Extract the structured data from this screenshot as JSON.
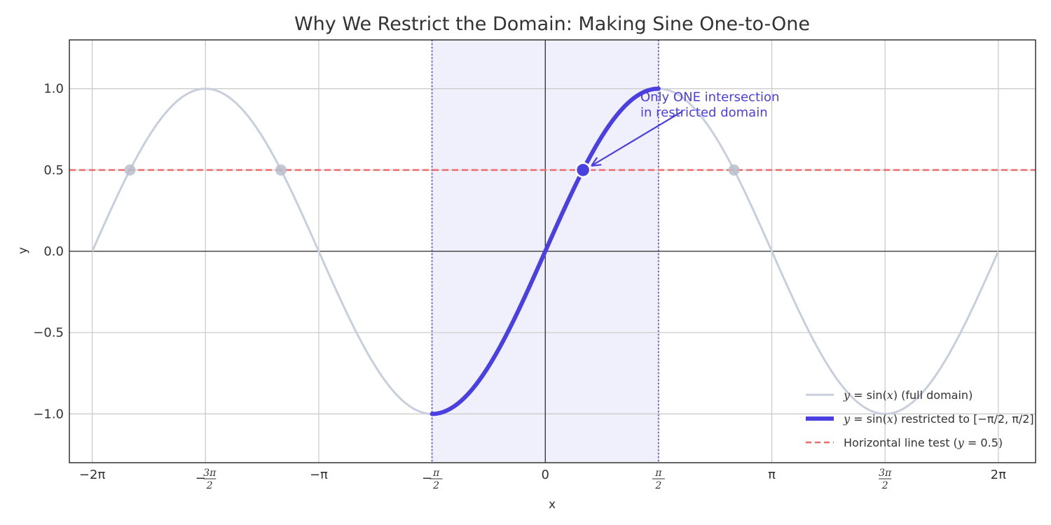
{
  "chart_data": {
    "type": "line",
    "title": "Why We Restrict the Domain: Making Sine One-to-One",
    "xlabel": "x",
    "ylabel": "y",
    "xlim": [
      -6.6,
      6.8
    ],
    "ylim": [
      -1.3,
      1.3
    ],
    "grid": true,
    "legend_position": "lower right",
    "x_ticks": [
      {
        "value": -6.2832,
        "label": "−2π",
        "kind": "plain"
      },
      {
        "value": -4.7124,
        "sign": "−",
        "num": "3π",
        "den": "2",
        "kind": "frac"
      },
      {
        "value": -3.1416,
        "label": "−π",
        "kind": "plain"
      },
      {
        "value": -1.5708,
        "sign": "−",
        "num": "π",
        "den": "2",
        "kind": "frac"
      },
      {
        "value": 0,
        "label": "0",
        "kind": "plain"
      },
      {
        "value": 1.5708,
        "sign": "",
        "num": "π",
        "den": "2",
        "kind": "frac"
      },
      {
        "value": 3.1416,
        "label": "π",
        "kind": "plain"
      },
      {
        "value": 4.7124,
        "sign": "",
        "num": "3π",
        "den": "2",
        "kind": "frac"
      },
      {
        "value": 6.2832,
        "label": "2π",
        "kind": "plain"
      }
    ],
    "y_ticks": [
      {
        "value": 1.0,
        "label": "1.0"
      },
      {
        "value": 0.5,
        "label": "0.5"
      },
      {
        "value": 0.0,
        "label": "0.0"
      },
      {
        "value": -0.5,
        "label": "−0.5"
      },
      {
        "value": -1.0,
        "label": "−1.0"
      }
    ],
    "series": [
      {
        "name": "y = sin(x) (full domain)",
        "function": "sin",
        "x_range": [
          -6.2832,
          6.2832
        ],
        "color": "#c8cfdc"
      },
      {
        "name": "y = sin(x) restricted to [−π/2, π/2]",
        "function": "sin",
        "x_range": [
          -1.5708,
          1.5708
        ],
        "color": "#4a3fe0"
      },
      {
        "name": "Horizontal line test (y = 0.5)",
        "function": "const",
        "y": 0.5,
        "color": "#ee6b6b",
        "style": "dashed"
      }
    ],
    "shaded_region": {
      "x": [
        -1.5708,
        1.5708
      ],
      "color": "#f0effc"
    },
    "boundary_lines": [
      -1.5708,
      1.5708
    ],
    "intersections_full_domain": [
      {
        "x": -5.7596,
        "y": 0.5
      },
      {
        "x": -3.6652,
        "y": 0.5
      },
      {
        "x": 2.618,
        "y": 0.5
      }
    ],
    "intersection_restricted": {
      "x": 0.5236,
      "y": 0.5
    },
    "annotation": {
      "lines": [
        "Only ONE intersection",
        "in restricted domain"
      ],
      "x": 1.3,
      "y": 0.92,
      "arrow_from": [
        1.9,
        0.86
      ],
      "arrow_to": [
        0.5236,
        0.5
      ]
    },
    "legend": [
      {
        "prefix": "y",
        "eq": " = sin(",
        "var": "x",
        "suffix": ") (full domain)"
      },
      {
        "prefix": "y",
        "eq": " = sin(",
        "var": "x",
        "suffix": ") restricted to [−π/2, π/2]"
      },
      {
        "text": "Horizontal line test (",
        "var": "y",
        "eq": " = 0.5)"
      }
    ],
    "colors": {
      "full": "#c8cfdc",
      "restricted": "#4a3fe0",
      "hline": "#ee6b6b",
      "shade": "#f0effc",
      "grid": "#cccccc",
      "axis": "#333333",
      "annotation": "#4a3fe0"
    }
  }
}
